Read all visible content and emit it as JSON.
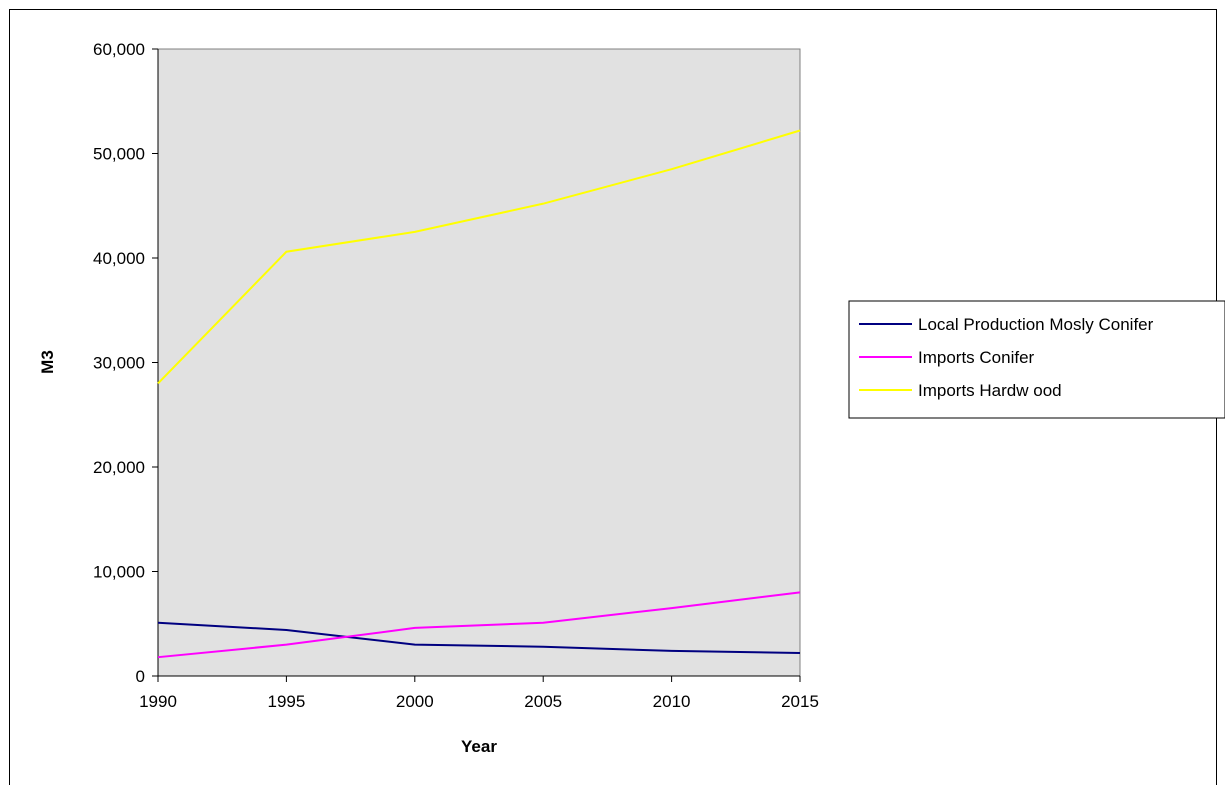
{
  "chart_data": {
    "type": "line",
    "title": "",
    "xlabel": "Year",
    "ylabel": "M3",
    "x": [
      1990,
      1995,
      2000,
      2005,
      2010,
      2015
    ],
    "xlim": [
      1990,
      2015
    ],
    "ylim": [
      0,
      60000
    ],
    "yticks": [
      0,
      10000,
      20000,
      30000,
      40000,
      50000,
      60000
    ],
    "ytick_labels": [
      "0",
      "10,000",
      "20,000",
      "30,000",
      "40,000",
      "50,000",
      "60,000"
    ],
    "xtick_labels": [
      "1990",
      "1995",
      "2000",
      "2005",
      "2010",
      "2015"
    ],
    "grid": false,
    "plot_background": "#e1e1e1",
    "legend_position": "right",
    "series": [
      {
        "name": "Local Production Mosly Conifer",
        "color": "#000080",
        "values": [
          5100,
          4400,
          3000,
          2800,
          2400,
          2200
        ]
      },
      {
        "name": "Imports Conifer",
        "color": "#ff00ff",
        "values": [
          1800,
          3000,
          4600,
          5100,
          6500,
          8000
        ]
      },
      {
        "name": "Imports Hardw ood",
        "color": "#ffff00",
        "values": [
          28000,
          40600,
          42500,
          45200,
          48500,
          52200
        ]
      }
    ]
  }
}
